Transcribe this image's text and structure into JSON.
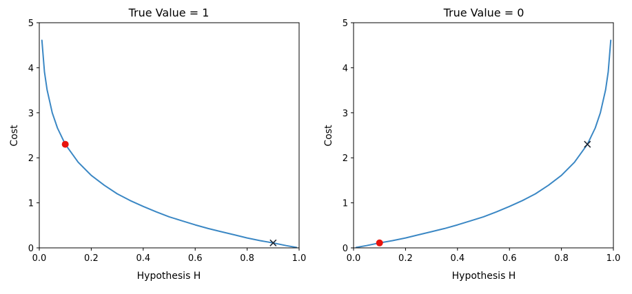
{
  "chart_data": [
    {
      "type": "line",
      "title": "True Value = 1",
      "xlabel": "Hypothesis H",
      "ylabel": "Cost",
      "xlim": [
        0.0,
        1.0
      ],
      "ylim": [
        0,
        5
      ],
      "xticks": [
        "0.0",
        "0.2",
        "0.4",
        "0.6",
        "0.8",
        "1.0"
      ],
      "yticks": [
        "0",
        "1",
        "2",
        "3",
        "4",
        "5"
      ],
      "grid": false,
      "curve": "-log(h)",
      "series": [
        {
          "x": [
            0.01,
            0.02,
            0.03,
            0.05,
            0.07,
            0.1,
            0.15,
            0.2,
            0.25,
            0.3,
            0.35,
            0.4,
            0.45,
            0.5,
            0.55,
            0.6,
            0.65,
            0.7,
            0.75,
            0.8,
            0.85,
            0.9,
            0.95,
            0.99
          ],
          "values": [
            4.61,
            3.91,
            3.51,
            3.0,
            2.66,
            2.3,
            1.9,
            1.61,
            1.39,
            1.2,
            1.05,
            0.92,
            0.8,
            0.69,
            0.6,
            0.51,
            0.43,
            0.36,
            0.29,
            0.22,
            0.16,
            0.11,
            0.05,
            0.01
          ],
          "color": "#3a87c4"
        }
      ],
      "markers": [
        {
          "x": 0.1,
          "y": 2.3,
          "marker": "circle",
          "color": "#e8140d"
        },
        {
          "x": 0.9,
          "y": 0.11,
          "marker": "x",
          "color": "#1c2430"
        }
      ]
    },
    {
      "type": "line",
      "title": "True Value = 0",
      "xlabel": "Hypothesis H",
      "ylabel": "Cost",
      "xlim": [
        0.0,
        1.0
      ],
      "ylim": [
        0,
        5
      ],
      "xticks": [
        "0.0",
        "0.2",
        "0.4",
        "0.6",
        "0.8",
        "1.0"
      ],
      "yticks": [
        "0",
        "1",
        "2",
        "3",
        "4",
        "5"
      ],
      "grid": false,
      "curve": "-log(1-h)",
      "series": [
        {
          "x": [
            0.01,
            0.05,
            0.1,
            0.15,
            0.2,
            0.25,
            0.3,
            0.35,
            0.4,
            0.45,
            0.5,
            0.55,
            0.6,
            0.65,
            0.7,
            0.75,
            0.8,
            0.85,
            0.9,
            0.93,
            0.95,
            0.97,
            0.98,
            0.99
          ],
          "values": [
            0.01,
            0.05,
            0.11,
            0.16,
            0.22,
            0.29,
            0.36,
            0.43,
            0.51,
            0.6,
            0.69,
            0.8,
            0.92,
            1.05,
            1.2,
            1.39,
            1.61,
            1.9,
            2.3,
            2.66,
            3.0,
            3.51,
            3.91,
            4.61
          ],
          "color": "#3a87c4"
        }
      ],
      "markers": [
        {
          "x": 0.1,
          "y": 0.11,
          "marker": "circle",
          "color": "#e8140d"
        },
        {
          "x": 0.9,
          "y": 2.3,
          "marker": "x",
          "color": "#1c2430"
        }
      ]
    }
  ]
}
